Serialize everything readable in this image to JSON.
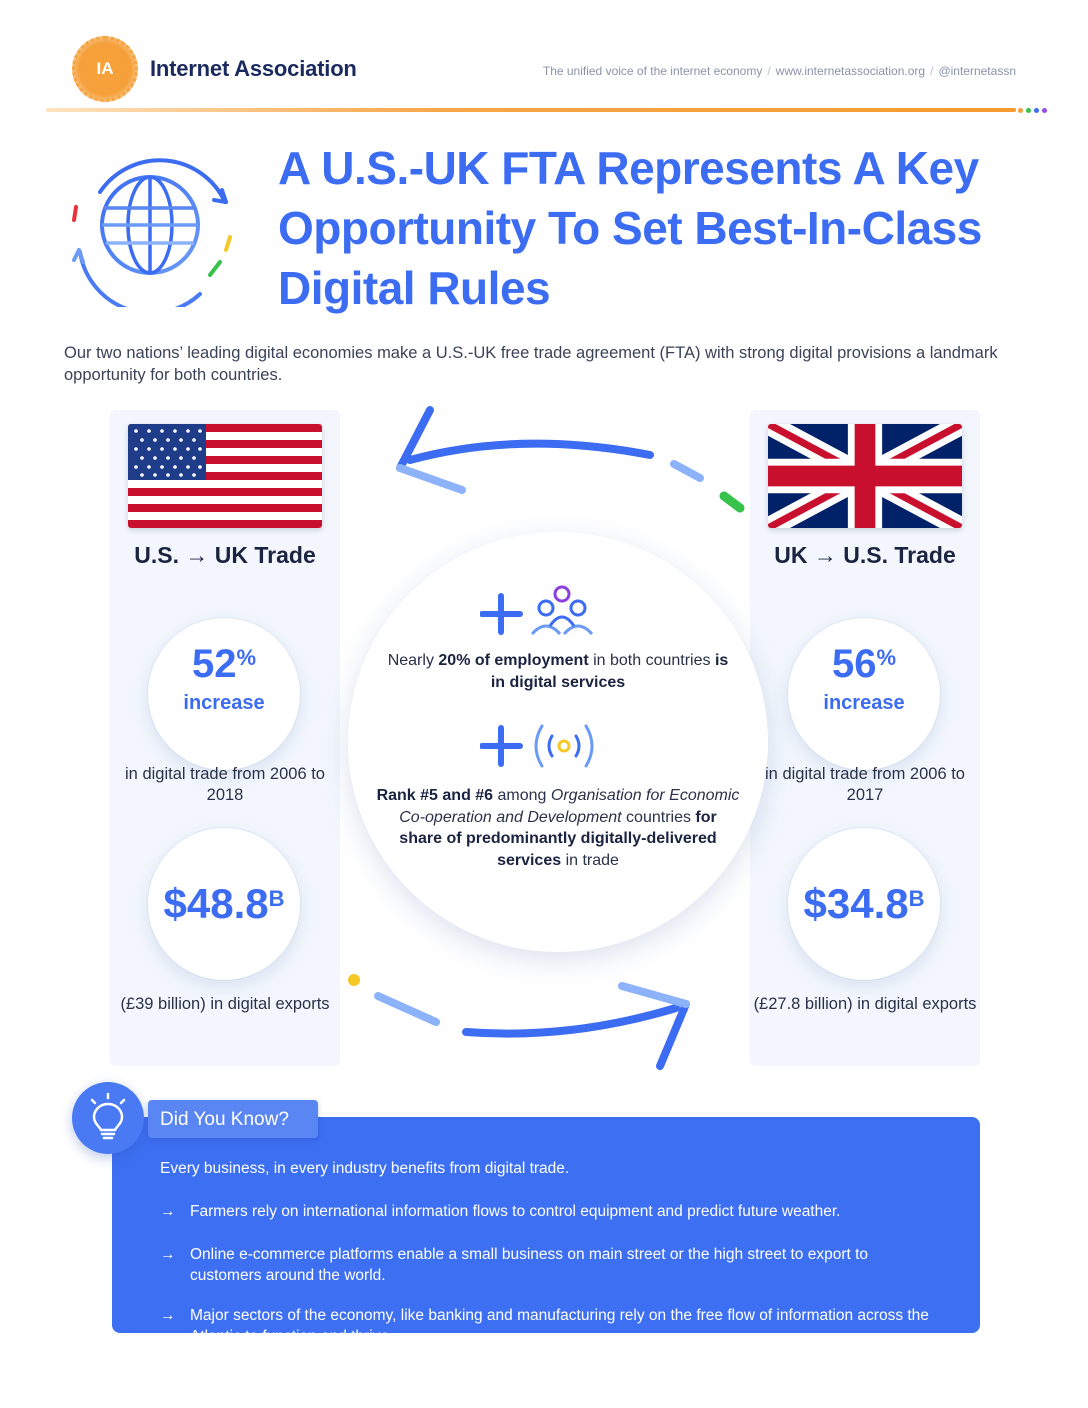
{
  "header": {
    "logo_initials": "IA",
    "brand_name": "Internet Association",
    "tagline": "The unified voice of the internet economy",
    "website": "www.internetassociation.org",
    "handle": "@internetassn",
    "separator": "/"
  },
  "title": "A U.S.-UK FTA Represents A Key Opportunity To Set Best-In-Class Digital Rules",
  "intro": "Our two nations’ leading digital economies make a U.S.-UK free trade agreement (FTA) with strong digital provisions a landmark opportunity for both countries.",
  "us_panel": {
    "heading": "U.S. → UK Trade",
    "stat1_value": "52",
    "stat1_unit": "%",
    "stat1_label": "increase",
    "stat1_note": "in digital trade from 2006 to 2018",
    "stat2_value": "$48.8",
    "stat2_unit": "B",
    "stat2_note": "(£39 billion) in digital exports"
  },
  "uk_panel": {
    "heading": "UK → U.S. Trade",
    "stat1_value": "56",
    "stat1_unit": "%",
    "stat1_label": "increase",
    "stat1_note": "in digital trade from 2006 to 2017",
    "stat2_value": "$34.8",
    "stat2_unit": "B",
    "stat2_note": "(£27.8 billion) in digital exports"
  },
  "center": {
    "fact1_part1": "Nearly ",
    "fact1_bold1": "20% of employment",
    "fact1_part2": " in both countries ",
    "fact1_bold2": "is in digital services",
    "fact2_bold1": "Rank #5 and #6",
    "fact2_part1": " among ",
    "fact2_italic": "Organisation for Economic Co-operation and Development",
    "fact2_part2": " countries ",
    "fact2_bold2": "for share of predominantly digitally-delivered services",
    "fact2_part3": " in trade"
  },
  "did_you_know": {
    "heading": "Did You Know?",
    "lead": "Every business, in every industry benefits from digital trade.",
    "arrow": "→",
    "items": [
      "Farmers rely on international information flows to control equipment and predict future weather.",
      "Online e-commerce platforms enable a small business on main street or the high street to export to customers around the world.",
      "Major sectors of the economy, like banking and manufacturing rely on the free flow of information across the Atlantic to function and thrive."
    ]
  },
  "colors": {
    "accent_blue": "#3b6cf2",
    "brand_orange": "#f59a2e",
    "dot_colors": [
      "#f5a03a",
      "#37c24a",
      "#3b6cf2",
      "#9b4be0"
    ]
  },
  "icons": {
    "logo": "ia-logo",
    "globe": "globe-icon",
    "people": "people-icon",
    "signal": "signal-icon",
    "plus": "plus-icon",
    "bulb": "lightbulb-icon"
  }
}
